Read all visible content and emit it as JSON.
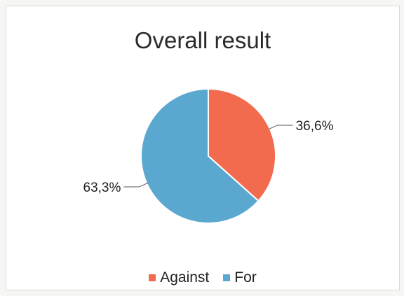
{
  "chart_data": {
    "type": "pie",
    "title": "Overall result",
    "series": [
      {
        "name": "Against",
        "value": 36.6,
        "label": "36,6%",
        "color": "#f26b4f"
      },
      {
        "name": "For",
        "value": 63.3,
        "label": "63,3%",
        "color": "#5aa7cf"
      }
    ],
    "legend_position": "bottom"
  }
}
